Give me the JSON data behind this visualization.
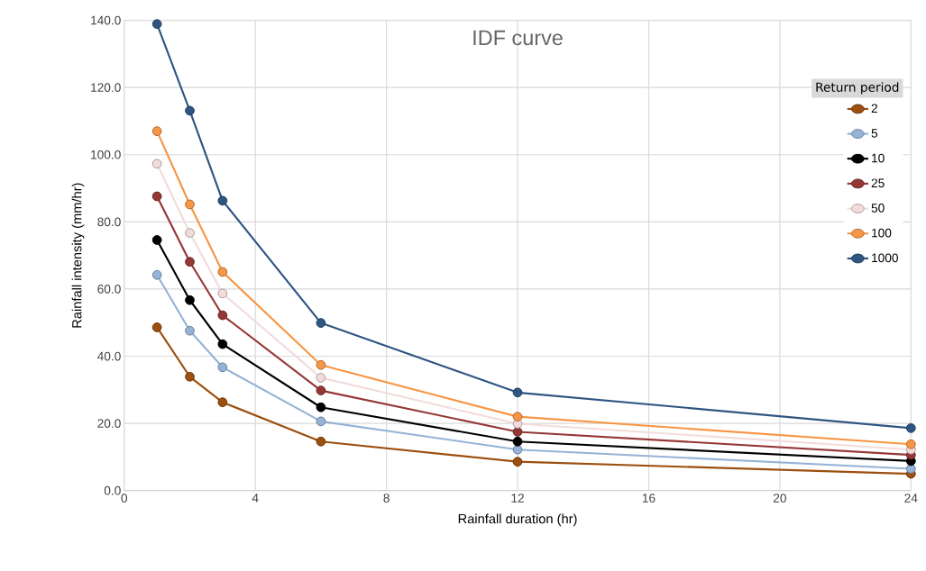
{
  "chart_data": {
    "type": "line",
    "title": "IDF curve",
    "xlabel": "Rainfall duration (hr)",
    "ylabel": "Rainfall intensity (mm/hr)",
    "legend_title": "Return period",
    "x": [
      1,
      2,
      3,
      6,
      12,
      24
    ],
    "series": [
      {
        "name": "2",
        "color": "#9c4f0f",
        "values": [
          48.6,
          33.9,
          26.3,
          14.6,
          8.6,
          5.0
        ]
      },
      {
        "name": "5",
        "color": "#95b3d7",
        "values": [
          64.2,
          47.6,
          36.7,
          20.6,
          12.2,
          6.5
        ]
      },
      {
        "name": "10",
        "color": "#000000",
        "values": [
          74.6,
          56.7,
          43.6,
          24.8,
          14.6,
          8.8
        ]
      },
      {
        "name": "25",
        "color": "#953735",
        "values": [
          87.6,
          68.1,
          52.2,
          29.8,
          17.5,
          10.6
        ]
      },
      {
        "name": "50",
        "color": "#f2dcdb",
        "values": [
          97.3,
          76.7,
          58.7,
          33.6,
          19.9,
          12.2
        ]
      },
      {
        "name": "100",
        "color": "#f79646",
        "values": [
          107.0,
          85.2,
          65.1,
          37.4,
          22.0,
          13.8
        ]
      },
      {
        "name": "1000",
        "color": "#2f5582",
        "values": [
          138.9,
          113.1,
          86.3,
          49.9,
          29.2,
          18.6
        ]
      }
    ],
    "xlim": [
      0,
      24
    ],
    "xticks": [
      0,
      4,
      8,
      12,
      16,
      20,
      24
    ],
    "ylim": [
      0,
      140
    ],
    "yticks": [
      {
        "value": 0,
        "label": "0.0"
      },
      {
        "value": 20,
        "label": "20.0"
      },
      {
        "value": 40,
        "label": "40.0"
      },
      {
        "value": 60,
        "label": "60.0"
      },
      {
        "value": 80,
        "label": "80.0"
      },
      {
        "value": 100,
        "label": "100.0"
      },
      {
        "value": 120,
        "label": "120.0"
      },
      {
        "value": 140,
        "label": "140.0"
      }
    ],
    "grid": true,
    "legend": "top right",
    "marker": "circle",
    "line_style": "solid"
  }
}
